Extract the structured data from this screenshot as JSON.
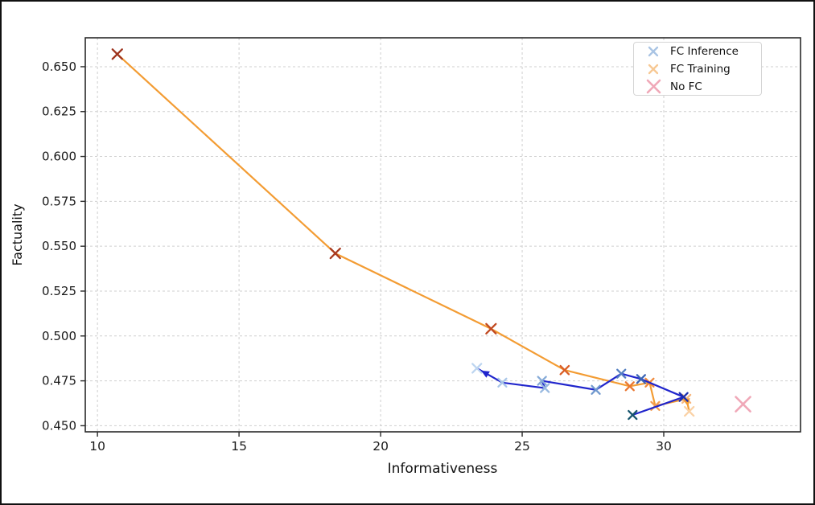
{
  "figure": {
    "xlabel": "Informativeness",
    "ylabel": "Factuality"
  },
  "legend": {
    "position": "upper right",
    "items": [
      {
        "label": "FC Inference",
        "marker": "x",
        "marker_color": "#A9C4E4",
        "marker_size": 5
      },
      {
        "label": "FC Training",
        "marker": "x",
        "marker_color": "#F7C893",
        "marker_size": 5
      },
      {
        "label": "No FC",
        "marker": "x",
        "marker_color": "#F0A8B8",
        "marker_size": 7.5
      }
    ]
  },
  "chart_data": {
    "type": "line",
    "title": "",
    "xlabel": "Informativeness",
    "ylabel": "Factuality",
    "xlim": [
      9.57,
      34.83
    ],
    "ylim": [
      0.4466,
      0.6661
    ],
    "xticks": [
      10,
      15,
      20,
      25,
      30
    ],
    "yticks": [
      0.45,
      0.475,
      0.5,
      0.525,
      0.55,
      0.575,
      0.6,
      0.625,
      0.65
    ],
    "x_tick_decimals": 0,
    "y_tick_decimals": 3,
    "grid": "dashed",
    "grid_color": "#cfcfcf",
    "spine_color": "#2a2a2a",
    "legend_position": "upper right",
    "series": [
      {
        "name": "FC Training",
        "mode": "line+marker",
        "line_color": "#F39C33",
        "line_width": 2.2,
        "marker": "x",
        "arrow_at_end": true,
        "points": [
          {
            "x": 10.7,
            "y": 0.657,
            "color": "#9E331D",
            "size": 6
          },
          {
            "x": 18.4,
            "y": 0.546,
            "color": "#A83A1F",
            "size": 6
          },
          {
            "x": 23.9,
            "y": 0.504,
            "color": "#C14A22",
            "size": 6
          },
          {
            "x": 26.5,
            "y": 0.481,
            "color": "#DA5F28",
            "size": 5.2
          },
          {
            "x": 28.8,
            "y": 0.472,
            "color": "#E97731",
            "size": 5
          },
          {
            "x": 29.5,
            "y": 0.474,
            "color": "#F08A3C",
            "size": 5
          },
          {
            "x": 29.7,
            "y": 0.461,
            "color": "#F49D55",
            "size": 5
          },
          {
            "x": 30.8,
            "y": 0.465,
            "color": "#F7B77E",
            "size": 5
          },
          {
            "x": 30.9,
            "y": 0.458,
            "color": "#FAD2A6",
            "size": 5.5
          }
        ]
      },
      {
        "name": "FC Inference",
        "mode": "line+marker",
        "line_color": "#2025CC",
        "line_width": 2.2,
        "marker": "x",
        "arrow_at_end": true,
        "points": [
          {
            "x": 28.9,
            "y": 0.456,
            "color": "#17566E",
            "size": 5
          },
          {
            "x": 30.7,
            "y": 0.466,
            "color": "#1D2FAE",
            "size": 5
          },
          {
            "x": 29.2,
            "y": 0.476,
            "color": "#3C64B4",
            "size": 5
          },
          {
            "x": 28.5,
            "y": 0.479,
            "color": "#5580C2",
            "size": 5
          },
          {
            "x": 27.6,
            "y": 0.47,
            "color": "#7099CE",
            "size": 5
          },
          {
            "x": 25.7,
            "y": 0.475,
            "color": "#86ABD8",
            "size": 5
          },
          {
            "x": 25.8,
            "y": 0.471,
            "color": "#98B9E0",
            "size": 5
          },
          {
            "x": 24.3,
            "y": 0.474,
            "color": "#A9C6E8",
            "size": 5
          },
          {
            "x": 23.4,
            "y": 0.482,
            "color": "#BDD5F0",
            "size": 5.5
          }
        ]
      },
      {
        "name": "No FC",
        "mode": "scatter",
        "line_color": "none",
        "marker": "x",
        "arrow_at_end": false,
        "points": [
          {
            "x": 32.8,
            "y": 0.462,
            "color": "#F0A8B8",
            "size": 9
          }
        ]
      }
    ]
  }
}
